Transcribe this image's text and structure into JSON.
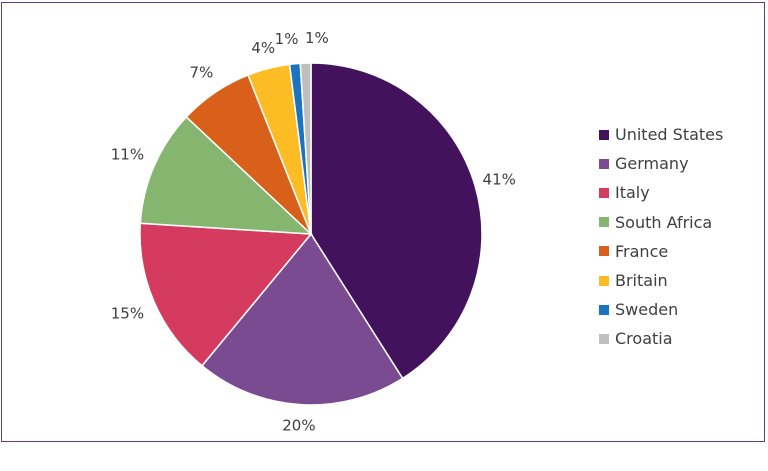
{
  "chart_data": {
    "type": "pie",
    "title": "",
    "categories": [
      "United States",
      "Germany",
      "Italy",
      "South Africa",
      "France",
      "Britain",
      "Sweden",
      "Croatia"
    ],
    "values": [
      41,
      20,
      15,
      11,
      7,
      4,
      1,
      1
    ],
    "labels": [
      "41%",
      "20%",
      "15%",
      "11%",
      "7%",
      "4%",
      "1%",
      "1%"
    ],
    "colors": [
      "#42135c",
      "#7a4b91",
      "#d43b5e",
      "#86b56f",
      "#d9601a",
      "#fbbd23",
      "#1a74bf",
      "#bfbfbf"
    ],
    "legend_position": "right",
    "start": "top",
    "direction": "clockwise"
  }
}
